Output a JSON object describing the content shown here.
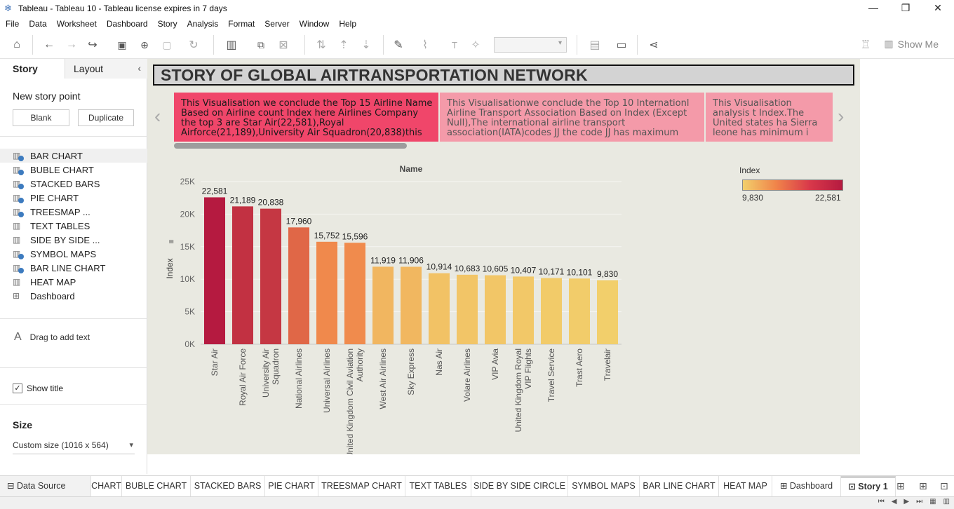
{
  "window": {
    "title": "Tableau - Tableau 10 - Tableau license expires in 7 days",
    "controls": [
      "—",
      "❐",
      "✕"
    ]
  },
  "menu": [
    "File",
    "Data",
    "Worksheet",
    "Dashboard",
    "Story",
    "Analysis",
    "Format",
    "Server",
    "Window",
    "Help"
  ],
  "toolbar": {
    "show_me": "Show Me"
  },
  "left_panel": {
    "tab_story": "Story",
    "tab_layout": "Layout",
    "new_story_point": "New story point",
    "blank_button": "Blank",
    "duplicate_button": "Duplicate",
    "sheets": [
      {
        "label": "BAR CHART",
        "used": true,
        "type": "worksheet"
      },
      {
        "label": "BUBLE CHART",
        "used": true,
        "type": "worksheet"
      },
      {
        "label": "STACKED BARS",
        "used": true,
        "type": "worksheet"
      },
      {
        "label": "PIE CHART",
        "used": true,
        "type": "worksheet"
      },
      {
        "label": "TREESMAP ...",
        "used": true,
        "type": "worksheet"
      },
      {
        "label": "TEXT TABLES",
        "used": false,
        "type": "worksheet"
      },
      {
        "label": "SIDE BY SIDE ...",
        "used": false,
        "type": "worksheet"
      },
      {
        "label": "SYMBOL MAPS",
        "used": true,
        "type": "worksheet"
      },
      {
        "label": "BAR LINE CHART",
        "used": true,
        "type": "worksheet"
      },
      {
        "label": "HEAT MAP",
        "used": false,
        "type": "worksheet"
      },
      {
        "label": "Dashboard",
        "used": false,
        "type": "dashboard"
      }
    ],
    "drag_text": "Drag to add text",
    "show_title": "Show title",
    "size_heading": "Size",
    "size_value": "Custom size (1016 x 564)"
  },
  "story": {
    "title": "STORY OF GLOBAL AIRTRANSPORTATION NETWORK",
    "points": [
      "This Visualisation we conclude the Top 15 Airline Name Based on Airline count Index  here Airlines Company the top 3 are Star Air(22,581),Royal Airforce(21,189),University Air Squadron(20,838)this",
      "This Visualisationwe conclude the Top 10 Internationl Airline Transport Association Based on Index (Except Null),The international airline transport association(IATA)codes JJ the code JJ has maximum",
      "This Visualisation analysis t Index.The United states ha Sierra leone has minimum i"
    ]
  },
  "chart_data": {
    "type": "bar",
    "title": "Name",
    "ylabel": "Index",
    "ylim": [
      0,
      25000
    ],
    "yticks": [
      "0K",
      "5K",
      "10K",
      "15K",
      "20K",
      "25K"
    ],
    "categories": [
      "Star Air",
      "Royal Air Force",
      "University Air Squadron",
      "National Airlines",
      "Universal Airlines",
      "United Kingdom Civil Aviation Authority",
      "West Air Airlines",
      "Sky Express",
      "Nas Air",
      "Volare Airlines",
      "VIP Avia",
      "United Kingdom Royal VIP Flights",
      "Travel Service",
      "Trast Aero",
      "Travelair"
    ],
    "values": [
      22581,
      21189,
      20838,
      17960,
      15752,
      15596,
      11919,
      11906,
      10914,
      10683,
      10605,
      10407,
      10171,
      10101,
      9830
    ],
    "labels": [
      "22,581",
      "21,189",
      "20,838",
      "17,960",
      "15,752",
      "15,596",
      "11,919",
      "11,906",
      "10,914",
      "10,683",
      "10,605",
      "10,407",
      "10,171",
      "10,101",
      "9,830"
    ],
    "legend": {
      "title": "Index",
      "min_label": "9,830",
      "max_label": "22,581",
      "color_low": "#f2cf6b",
      "color_mid": "#f0844a",
      "color_high": "#b51a40"
    }
  },
  "bottom_tabs": {
    "data_source": "Data Source",
    "tabs": [
      "CHART",
      "BUBLE CHART",
      "STACKED BARS",
      "PIE CHART",
      "TREESMAP CHART",
      "TEXT TABLES",
      "SIDE BY SIDE CIRCLE",
      "SYMBOL MAPS",
      "BAR LINE CHART",
      "HEAT MAP",
      "Dashboard",
      "Story 1"
    ]
  }
}
